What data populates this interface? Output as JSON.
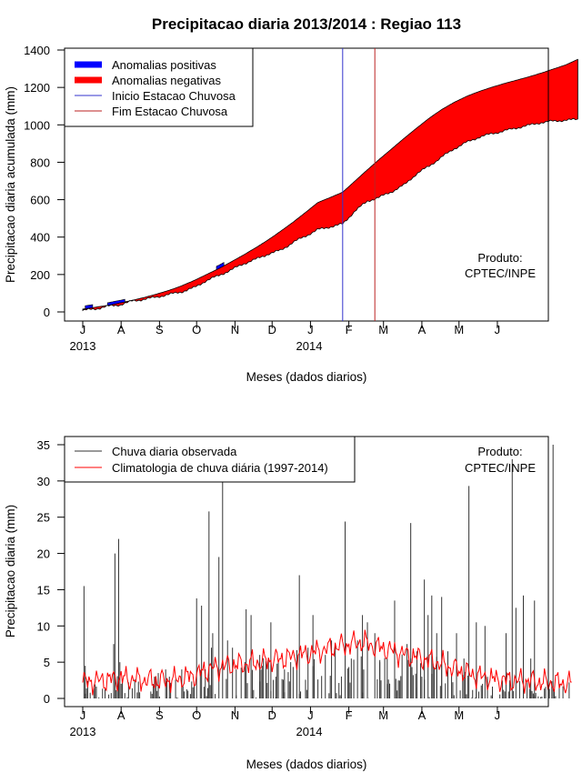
{
  "title": "Precipitacao diaria 2013/2014 : Regiao 113",
  "chart_data": [
    {
      "type": "area",
      "ylabel": "Precipitacao diaria acumulada (mm)",
      "xlabel": "Meses (dados diarios)",
      "ylim": [
        0,
        1400
      ],
      "yticks": [
        0,
        200,
        400,
        600,
        800,
        1000,
        1200,
        1400
      ],
      "yticklabels": [
        "0",
        "200",
        "400",
        "600",
        "800",
        "1000",
        "1200",
        "1400"
      ],
      "month_labels": [
        "J",
        "A",
        "S",
        "O",
        "N",
        "D",
        "J",
        "F",
        "M",
        "A",
        "M",
        "J"
      ],
      "year_labels": [
        "2013",
        "2014"
      ],
      "product_label": [
        "Produto:",
        "CPTEC/INPE"
      ],
      "legend": [
        {
          "label": "Anomalias positivas",
          "color": "#0000ff"
        },
        {
          "label": "Anomalias negativas",
          "color": "#ff0000"
        },
        {
          "label": "Inicio Estacao Chuvosa",
          "color": "#3333cc"
        },
        {
          "label": "Fim Estacao Chuvosa",
          "color": "#bb2222"
        }
      ],
      "rainy_season_start_day": 210,
      "rainy_season_end_day": 236,
      "observed_accumulated": {
        "days": [
          0,
          10,
          20,
          30,
          40,
          50,
          60,
          70,
          80,
          90,
          100,
          110,
          120,
          130,
          140,
          150,
          160,
          170,
          180,
          190,
          200,
          210,
          220,
          230,
          240,
          250,
          260,
          270,
          280,
          290,
          300,
          310,
          320,
          330,
          340,
          350,
          360,
          370,
          380,
          390,
          400
        ],
        "values": [
          8,
          16,
          30,
          38,
          58,
          68,
          80,
          94,
          108,
          130,
          168,
          195,
          225,
          258,
          282,
          310,
          330,
          372,
          406,
          440,
          455,
          470,
          540,
          592,
          614,
          644,
          680,
          740,
          780,
          828,
          872,
          906,
          934,
          952,
          967,
          983,
          997,
          1012,
          1020,
          1025,
          1030
        ]
      },
      "climatology_accumulated": {
        "days": [
          0,
          10,
          20,
          30,
          40,
          50,
          60,
          70,
          80,
          90,
          100,
          110,
          120,
          130,
          140,
          150,
          160,
          170,
          180,
          190,
          200,
          210,
          220,
          230,
          240,
          250,
          260,
          270,
          280,
          290,
          300,
          310,
          320,
          330,
          340,
          350,
          360,
          370,
          380,
          390,
          400
        ],
        "values": [
          15,
          25,
          35,
          48,
          62,
          78,
          96,
          116,
          140,
          168,
          200,
          232,
          268,
          305,
          344,
          386,
          432,
          480,
          532,
          585,
          612,
          640,
          700,
          760,
          818,
          874,
          930,
          984,
          1036,
          1082,
          1120,
          1152,
          1178,
          1200,
          1220,
          1238,
          1256,
          1276,
          1298,
          1320,
          1350
        ]
      }
    },
    {
      "type": "bar",
      "ylabel": "Precipitacao diaria (mm)",
      "xlabel": "Meses (dados diarios)",
      "ylim": [
        0,
        35
      ],
      "yticks": [
        0,
        5,
        10,
        15,
        20,
        25,
        30,
        35
      ],
      "yticklabels": [
        "0",
        "5",
        "10",
        "15",
        "20",
        "25",
        "30",
        "35"
      ],
      "month_labels": [
        "J",
        "A",
        "S",
        "O",
        "N",
        "D",
        "J",
        "F",
        "M",
        "A",
        "M",
        "J"
      ],
      "year_labels": [
        "2013",
        "2014"
      ],
      "product_label": [
        "Produto:",
        "CPTEC/INPE"
      ],
      "legend": [
        {
          "label": "Chuva diaria observada",
          "color": "#333333"
        },
        {
          "label": "Climatologia de chuva diária (1997-2014)",
          "color": "#ff0000"
        }
      ],
      "observed_daily_peaks": {
        "days": [
          1,
          2,
          25,
          26,
          29,
          30,
          58,
          61,
          67,
          70,
          80,
          92,
          96,
          102,
          104,
          105,
          110,
          113,
          117,
          121,
          124,
          132,
          136,
          143,
          152,
          156,
          158,
          163,
          175,
          182,
          186,
          196,
          201,
          212,
          217,
          222,
          226,
          230,
          236,
          240,
          246,
          252,
          262,
          265,
          270,
          276,
          279,
          282,
          286,
          290,
          295,
          302,
          308,
          312,
          318,
          325,
          342,
          347,
          350,
          356,
          362,
          365,
          380
        ],
        "values": [
          15.5,
          4.5,
          7.5,
          20,
          22,
          5,
          3,
          3.5,
          4,
          3,
          4,
          13.8,
          12.8,
          25.8,
          7,
          9,
          19.5,
          35,
          8,
          7,
          4,
          12.3,
          11.5,
          6,
          10.5,
          3,
          5,
          4,
          17,
          7,
          11.5,
          6,
          8,
          24.4,
          5.5,
          8,
          11.5,
          10.5,
          9,
          5,
          5.5,
          13.5,
          7.5,
          24.2,
          6.5,
          16.4,
          11.5,
          14.2,
          9,
          14,
          6.5,
          9,
          5.5,
          29.3,
          10.5,
          10,
          9,
          33,
          12.5,
          14.2,
          5.5,
          13.5,
          35
        ]
      },
      "climatology_daily": {
        "days": [
          0,
          15,
          30,
          45,
          60,
          75,
          90,
          105,
          120,
          135,
          150,
          165,
          180,
          195,
          210,
          225,
          240,
          255,
          270,
          285,
          300,
          315,
          330,
          345,
          360,
          375,
          390
        ],
        "values": [
          2.2,
          2.5,
          2.8,
          2.6,
          2.4,
          2.6,
          3.2,
          4.2,
          4.6,
          4.8,
          5.2,
          5.6,
          6.1,
          6.7,
          7.3,
          7.8,
          7.0,
          6.3,
          5.7,
          5.0,
          4.1,
          3.3,
          2.7,
          2.5,
          2.4,
          2.2,
          2.1
        ]
      }
    }
  ]
}
